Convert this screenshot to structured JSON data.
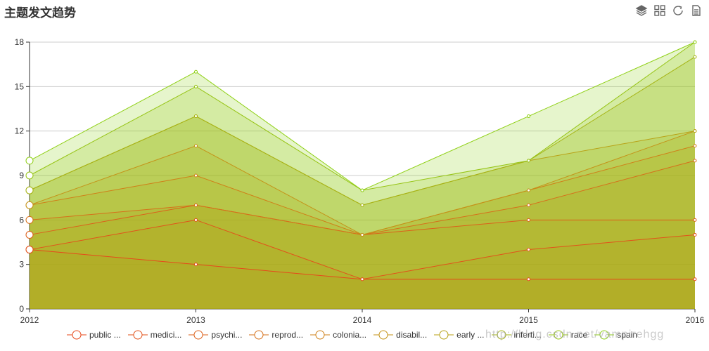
{
  "title": "主题发文趋势",
  "toolbox": {
    "icons": [
      "stack-icon",
      "grid-icon",
      "refresh-icon",
      "save-document-icon"
    ],
    "color": "#666666"
  },
  "watermark": "http://blog.csdn.net/vampirehgg",
  "chart_data": {
    "type": "area",
    "stacked": false,
    "x": [
      "2012",
      "2013",
      "2014",
      "2015",
      "2016"
    ],
    "ylim": [
      0,
      18
    ],
    "yticks": [
      "0",
      "3",
      "6",
      "9",
      "12",
      "15",
      "18"
    ],
    "grid": true,
    "legend_position": "bottom",
    "series": [
      {
        "name": "public ...",
        "values": [
          4,
          3,
          2,
          2,
          2
        ],
        "color": "#e7481b"
      },
      {
        "name": "medici...",
        "values": [
          4,
          6,
          2,
          4,
          5
        ],
        "color": "#e2521a"
      },
      {
        "name": "psychi...",
        "values": [
          5,
          7,
          5,
          6,
          6
        ],
        "color": "#dc601a"
      },
      {
        "name": "reprod...",
        "values": [
          6,
          7,
          5,
          7,
          10
        ],
        "color": "#d6701a"
      },
      {
        "name": "colonia...",
        "values": [
          7,
          9,
          5,
          8,
          11
        ],
        "color": "#cf8018"
      },
      {
        "name": "disabil...",
        "values": [
          7,
          11,
          5,
          8,
          12
        ],
        "color": "#c49318"
      },
      {
        "name": "early ...",
        "values": [
          8,
          13,
          7,
          10,
          12
        ],
        "color": "#b8a216"
      },
      {
        "name": "inferti...",
        "values": [
          8,
          13,
          7,
          10,
          17
        ],
        "color": "#a5b414"
      },
      {
        "name": "race",
        "values": [
          9,
          15,
          8,
          10,
          18
        ],
        "color": "#96c414"
      },
      {
        "name": "spain",
        "values": [
          10,
          16,
          8,
          13,
          18
        ],
        "color": "#8fd016"
      }
    ]
  }
}
